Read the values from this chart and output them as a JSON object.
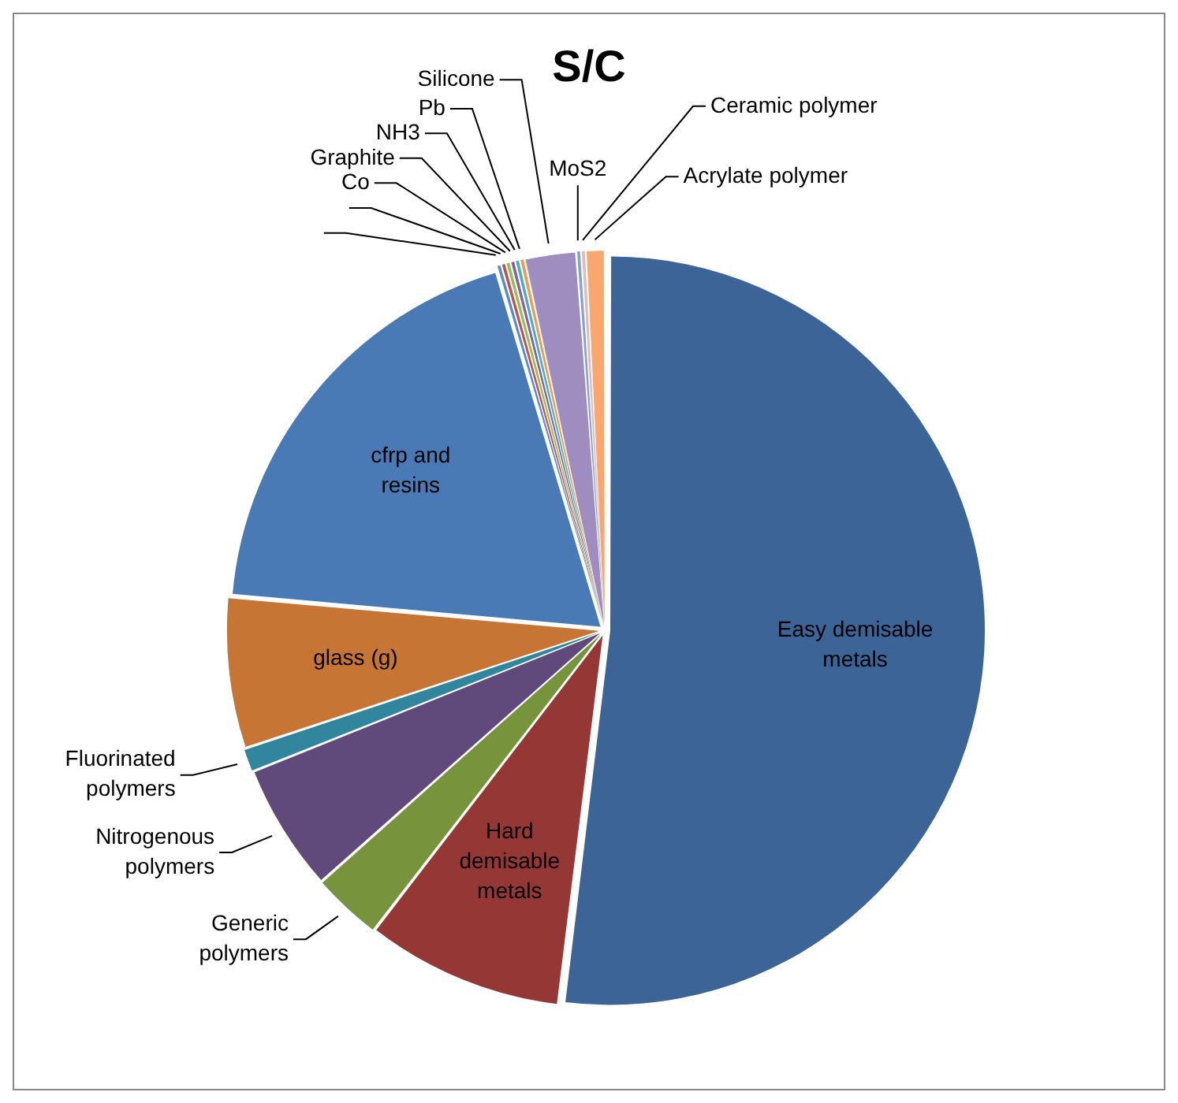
{
  "chart_data": {
    "type": "pie",
    "title": "S/C",
    "categories": [
      "Easy demisable metals",
      "Hard demisable metals",
      "Generic polymers",
      "Nitrogenous polymers",
      "Fluorinated polymers",
      "glass (g)",
      "cfrp and resins",
      null,
      null,
      "Co",
      "Graphite",
      "NH3",
      "Pb",
      "Silicone",
      "MoS2",
      "Ceramic polymer",
      "Acrylate polymer"
    ],
    "values": [
      52,
      8.5,
      3,
      5.5,
      1,
      6.5,
      19,
      0.2,
      0.2,
      0.2,
      0.2,
      0.2,
      0.2,
      2.2,
      0.2,
      0.2,
      0.8
    ],
    "colors": [
      "#3c6496",
      "#953735",
      "#77933c",
      "#604a7b",
      "#31859c",
      "#c77534",
      "#4a7ab5",
      "#5a8ac6",
      "#c0504d",
      "#9bbb59",
      "#8064a2",
      "#4bacc6",
      "#f79646",
      "#a08dbf",
      "#7fa3d3",
      "#e6b9b8",
      "#f9a66f"
    ],
    "legend": false
  }
}
